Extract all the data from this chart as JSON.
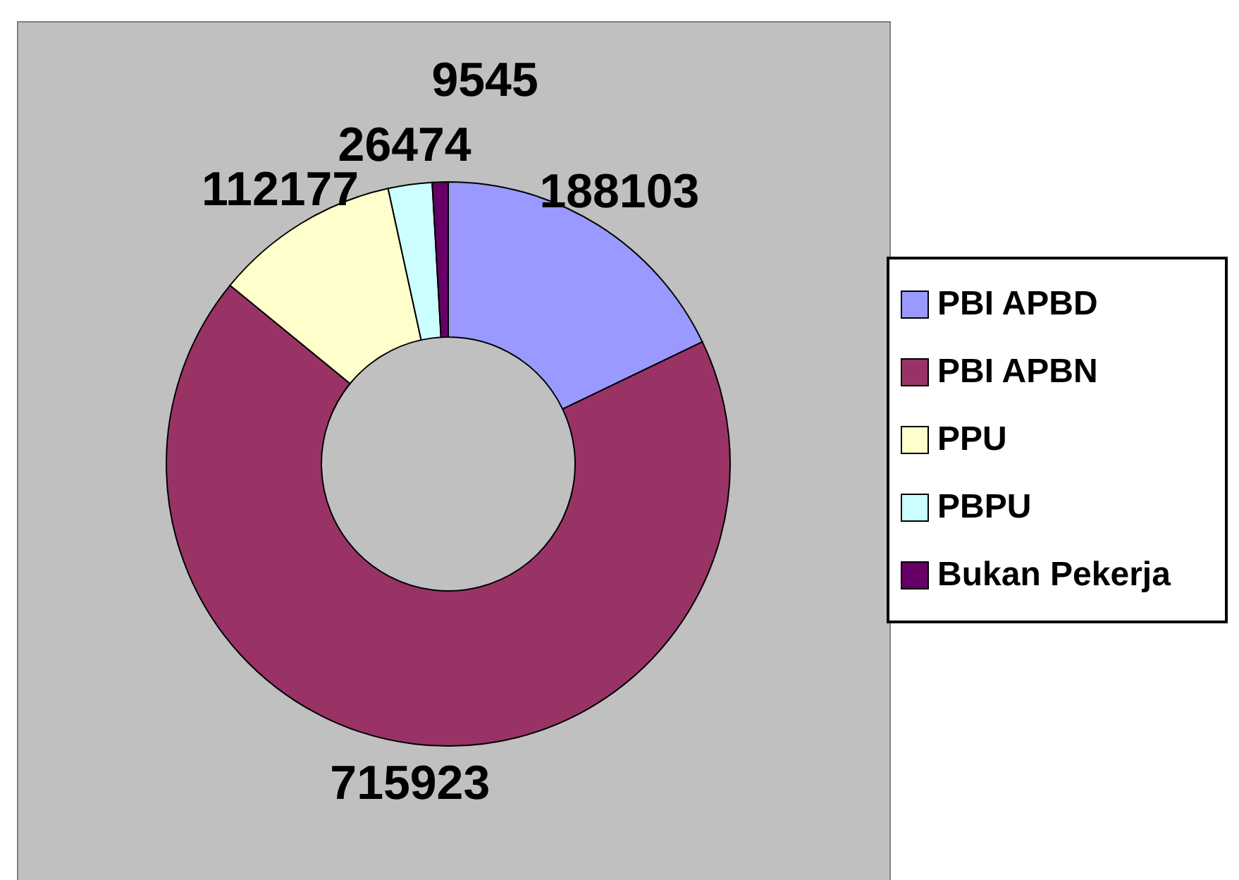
{
  "chart_data": {
    "type": "donut",
    "categories": [
      "PBI APBD",
      "PBI APBN",
      "PPU",
      "PBPU",
      "Bukan Pekerja"
    ],
    "values": [
      188103,
      715923,
      112177,
      26474,
      9545
    ],
    "colors": [
      "#9999ff",
      "#993366",
      "#ffffcc",
      "#ccffff",
      "#660066"
    ],
    "data_labels": true,
    "legend": "right"
  }
}
